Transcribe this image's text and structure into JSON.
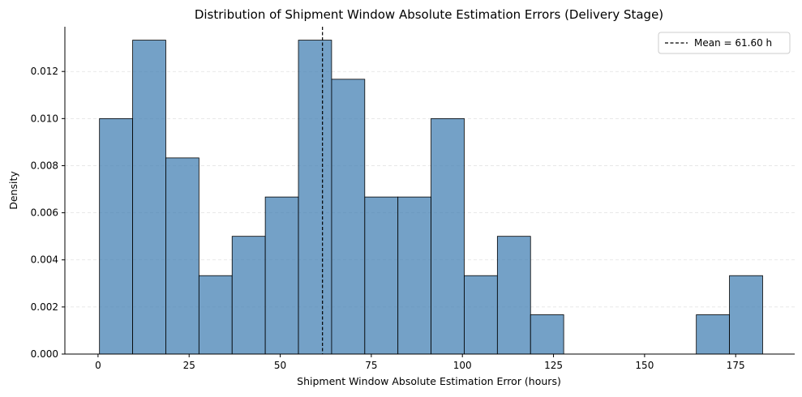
{
  "chart_data": {
    "type": "bar",
    "title": "Distribution of Shipment Window Absolute Estimation Errors (Delivery Stage)",
    "xlabel": "Shipment Window Absolute Estimation Error (hours)",
    "ylabel": "Density",
    "xlim": [
      -9.1,
      191.2
    ],
    "ylim": [
      0,
      0.0139
    ],
    "bin_edges": [
      0.4,
      9.5,
      18.6,
      27.7,
      36.8,
      45.9,
      55.0,
      64.1,
      73.2,
      82.3,
      91.4,
      100.5,
      109.6,
      118.7,
      127.8,
      136.9,
      146.0,
      155.1,
      164.2,
      173.3,
      182.4
    ],
    "values": [
      0.01,
      0.01333,
      0.00833,
      0.00333,
      0.005,
      0.00667,
      0.01333,
      0.01167,
      0.00667,
      0.00667,
      0.01,
      0.00333,
      0.005,
      0.00167,
      0,
      0,
      0,
      0,
      0.00167,
      0.00333
    ],
    "xticks": [
      0,
      25,
      50,
      75,
      100,
      125,
      150,
      175
    ],
    "xtick_labels": [
      "0",
      "25",
      "50",
      "75",
      "100",
      "125",
      "150",
      "175"
    ],
    "yticks": [
      0,
      0.002,
      0.004,
      0.006,
      0.008,
      0.01,
      0.012
    ],
    "ytick_labels": [
      "0.000",
      "0.002",
      "0.004",
      "0.006",
      "0.008",
      "0.010",
      "0.012"
    ],
    "mean": 61.6,
    "legend": {
      "label": "Mean = 61.60 h",
      "placement": "top-right"
    },
    "grid": {
      "y": true,
      "x": false
    },
    "colors": {
      "bar_fill": "#4682b4",
      "bar_edge": "#000000",
      "mean_line": "#000000",
      "grid": "#e0e0e0"
    }
  }
}
